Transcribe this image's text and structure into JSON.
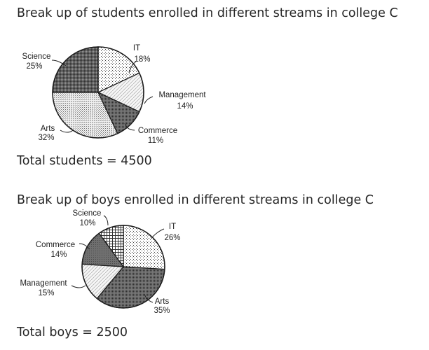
{
  "charts": [
    {
      "heading": "Break up of students enrolled in different streams in college C",
      "total": "Total students = 4500"
    },
    {
      "heading": "Break up of boys enrolled in different streams in college C",
      "total": "Total boys = 2500"
    }
  ],
  "chart_data": [
    {
      "type": "pie",
      "title": "Break up of students enrolled in different streams in college C",
      "labels": [
        "IT",
        "Management",
        "Commerce",
        "Arts",
        "Science"
      ],
      "values": [
        18,
        14,
        11,
        32,
        25
      ],
      "value_labels": [
        "18%",
        "14%",
        "11%",
        "32%",
        "25%"
      ],
      "patterns": [
        "dots-light",
        "lines-light",
        "dots-dark",
        "dots-medium",
        "dots-very-dark"
      ],
      "total": "Total students = 4500"
    },
    {
      "type": "pie",
      "title": "Break up of boys enrolled in different streams in college C",
      "labels": [
        "IT",
        "Arts",
        "Management",
        "Commerce",
        "Science"
      ],
      "values": [
        26,
        35,
        15,
        14,
        10
      ],
      "value_labels": [
        "26%",
        "35%",
        "15%",
        "14%",
        "10%"
      ],
      "patterns": [
        "dots-light",
        "dots-dark",
        "lines-light",
        "solid-dark",
        "grid"
      ],
      "total": "Total boys = 2500"
    }
  ]
}
